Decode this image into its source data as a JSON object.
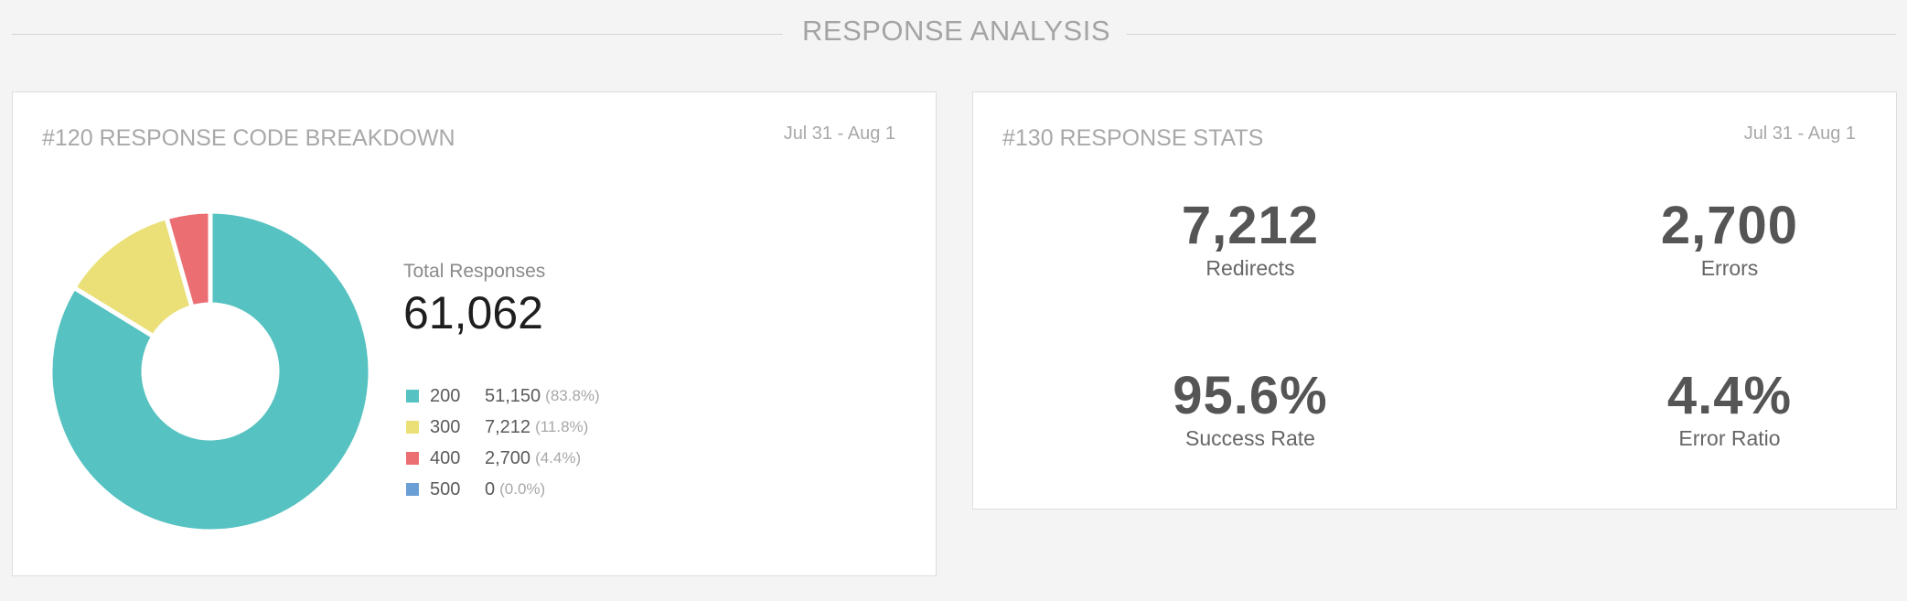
{
  "section": {
    "title": "RESPONSE ANALYSIS"
  },
  "breakdown": {
    "title": "#120 RESPONSE CODE BREAKDOWN",
    "date_range": "Jul 31 - Aug 1",
    "total_label": "Total Responses",
    "total_value": "61,062",
    "legend": [
      {
        "code": "200",
        "count": "51,150",
        "pct": "(83.8%)",
        "color": "#56c2c1"
      },
      {
        "code": "300",
        "count": "7,212",
        "pct": "(11.8%)",
        "color": "#ebe077"
      },
      {
        "code": "400",
        "count": "2,700",
        "pct": "(4.4%)",
        "color": "#eb6e73"
      },
      {
        "code": "500",
        "count": "0",
        "pct": "(0.0%)",
        "color": "#6a9fd6"
      }
    ]
  },
  "chart_data": {
    "type": "pie",
    "categories": [
      "200",
      "300",
      "400",
      "500"
    ],
    "values": [
      51150,
      7212,
      2700,
      0
    ],
    "colors": [
      "#56c2c1",
      "#ebe077",
      "#eb6e73",
      "#6a9fd6"
    ]
  },
  "stats": {
    "title": "#130 RESPONSE STATS",
    "date_range": "Jul 31 - Aug 1",
    "items": [
      {
        "value": "7,212",
        "label": "Redirects"
      },
      {
        "value": "2,700",
        "label": "Errors"
      },
      {
        "value": "95.6%",
        "label": "Success Rate"
      },
      {
        "value": "4.4%",
        "label": "Error Ratio"
      }
    ]
  }
}
